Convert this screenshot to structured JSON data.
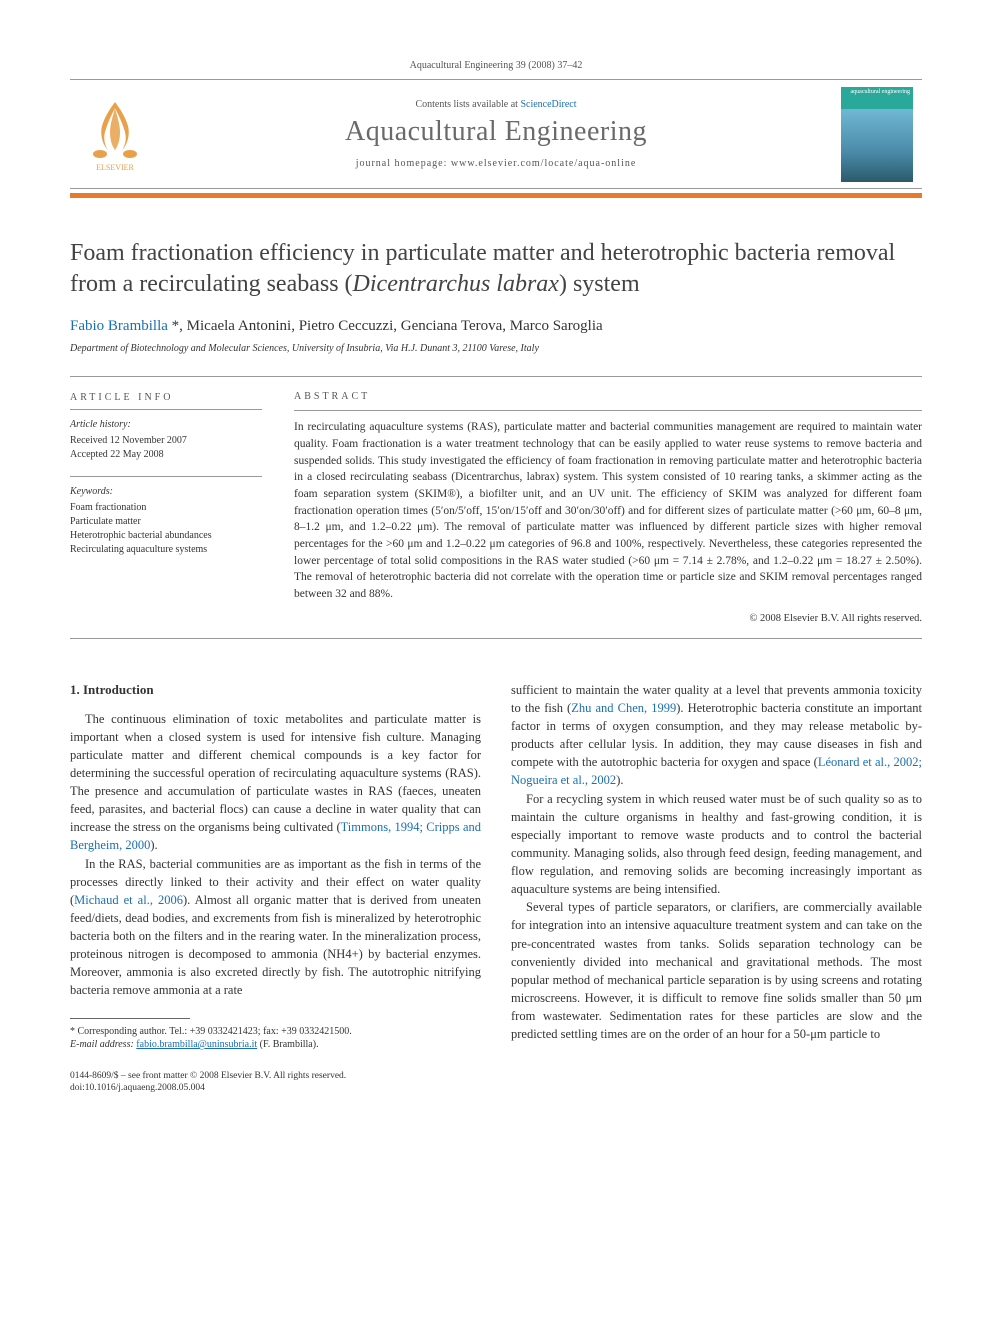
{
  "header": {
    "citation": "Aquacultural Engineering 39 (2008) 37–42"
  },
  "masthead": {
    "contents_prefix": "Contents lists available at ",
    "contents_link": "ScienceDirect",
    "journal_name": "Aquacultural Engineering",
    "homepage_prefix": "journal homepage: ",
    "homepage_url": "www.elsevier.com/locate/aqua-online",
    "cover_label": "aquacultural engineering"
  },
  "title_html": "Foam fractionation efficiency in particulate matter and heterotrophic bacteria removal from a recirculating seabass (<em>Dicentrarchus labrax</em>) system",
  "authors": {
    "list": "Fabio Brambilla *, Micaela Antonini, Pietro Ceccuzzi, Genciana Terova, Marco Saroglia",
    "corresponding_marker": "*"
  },
  "affiliation": "Department of Biotechnology and Molecular Sciences, University of Insubria, Via H.J. Dunant 3, 21100 Varese, Italy",
  "article_info": {
    "heading": "ARTICLE INFO",
    "history_label": "Article history:",
    "received": "Received 12 November 2007",
    "accepted": "Accepted 22 May 2008",
    "keywords_label": "Keywords:",
    "keywords": [
      "Foam fractionation",
      "Particulate matter",
      "Heterotrophic bacterial abundances",
      "Recirculating aquaculture systems"
    ]
  },
  "abstract": {
    "heading": "ABSTRACT",
    "text": "In recirculating aquaculture systems (RAS), particulate matter and bacterial communities management are required to maintain water quality. Foam fractionation is a water treatment technology that can be easily applied to water reuse systems to remove bacteria and suspended solids. This study investigated the efficiency of foam fractionation in removing particulate matter and heterotrophic bacteria in a closed recirculating seabass (Dicentrarchus, labrax) system. This system consisted of 10 rearing tanks, a skimmer acting as the foam separation system (SKIM®), a biofilter unit, and an UV unit. The efficiency of SKIM was analyzed for different foam fractionation operation times (5′on/5′off, 15′on/15′off and 30′on/30′off) and for different sizes of particulate matter (>60 μm, 60–8 μm, 8–1.2 μm, and 1.2–0.22 μm). The removal of particulate matter was influenced by different particle sizes with higher removal percentages for the >60 μm and 1.2–0.22 μm categories of 96.8 and 100%, respectively. Nevertheless, these categories represented the lower percentage of total solid compositions in the RAS water studied (>60 μm = 7.14 ± 2.78%, and 1.2–0.22 μm = 18.27 ± 2.50%). The removal of heterotrophic bacteria did not correlate with the operation time or particle size and SKIM removal percentages ranged between 32 and 88%.",
    "copyright": "© 2008 Elsevier B.V. All rights reserved."
  },
  "sections": {
    "intro_heading": "1. Introduction",
    "p1": "The continuous elimination of toxic metabolites and particulate matter is important when a closed system is used for intensive fish culture. Managing particulate matter and different chemical compounds is a key factor for determining the successful operation of recirculating aquaculture systems (RAS). The presence and accumulation of particulate wastes in RAS (faeces, uneaten feed, parasites, and bacterial flocs) can cause a decline in water quality that can increase the stress on the organisms being cultivated (",
    "p1_ref": "Timmons, 1994; Cripps and Bergheim, 2000",
    "p1_tail": ").",
    "p2": "In the RAS, bacterial communities are as important as the fish in terms of the processes directly linked to their activity and their effect on water quality (",
    "p2_ref": "Michaud et al., 2006",
    "p2_tail": "). Almost all organic matter that is derived from uneaten feed/diets, dead bodies, and excrements from fish is mineralized by heterotrophic bacteria both on the filters and in the rearing water. In the mineralization process, proteinous nitrogen is decomposed to ammonia (NH4+) by bacterial enzymes. Moreover, ammonia is also excreted directly by fish. The autotrophic nitrifying bacteria remove ammonia at a rate",
    "p3": "sufficient to maintain the water quality at a level that prevents ammonia toxicity to the fish (",
    "p3_ref": "Zhu and Chen, 1999",
    "p3_mid": "). Heterotrophic bacteria constitute an important factor in terms of oxygen consumption, and they may release metabolic by-products after cellular lysis. In addition, they may cause diseases in fish and compete with the autotrophic bacteria for oxygen and space (",
    "p3_ref2": "Léonard et al., 2002; Nogueira et al., 2002",
    "p3_tail": ").",
    "p4": "For a recycling system in which reused water must be of such quality so as to maintain the culture organisms in healthy and fast-growing condition, it is especially important to remove waste products and to control the bacterial community. Managing solids, also through feed design, feeding management, and flow regulation, and removing solids are becoming increasingly important as aquaculture systems are being intensified.",
    "p5": "Several types of particle separators, or clarifiers, are commercially available for integration into an intensive aquaculture treatment system and can take on the pre-concentrated wastes from tanks. Solids separation technology can be conveniently divided into mechanical and gravitational methods. The most popular method of mechanical particle separation is by using screens and rotating microscreens. However, it is difficult to remove fine solids smaller than 50 μm from wastewater. Sedimentation rates for these particles are slow and the predicted settling times are on the order of an hour for a 50-μm particle to"
  },
  "footnote": {
    "corr": "* Corresponding author. Tel.: +39 0332421423; fax: +39 0332421500.",
    "email_label": "E-mail address:",
    "email": "fabio.brambilla@uninsubria.it",
    "email_tail": "(F. Brambilla)."
  },
  "bottom": {
    "line1": "0144-8609/$ – see front matter © 2008 Elsevier B.V. All rights reserved.",
    "line2": "doi:10.1016/j.aquaeng.2008.05.004"
  },
  "colors": {
    "accent_orange": "#e8a04a",
    "link": "#1a6fb0",
    "rule": "#999999",
    "cover": "#2aa89a"
  }
}
